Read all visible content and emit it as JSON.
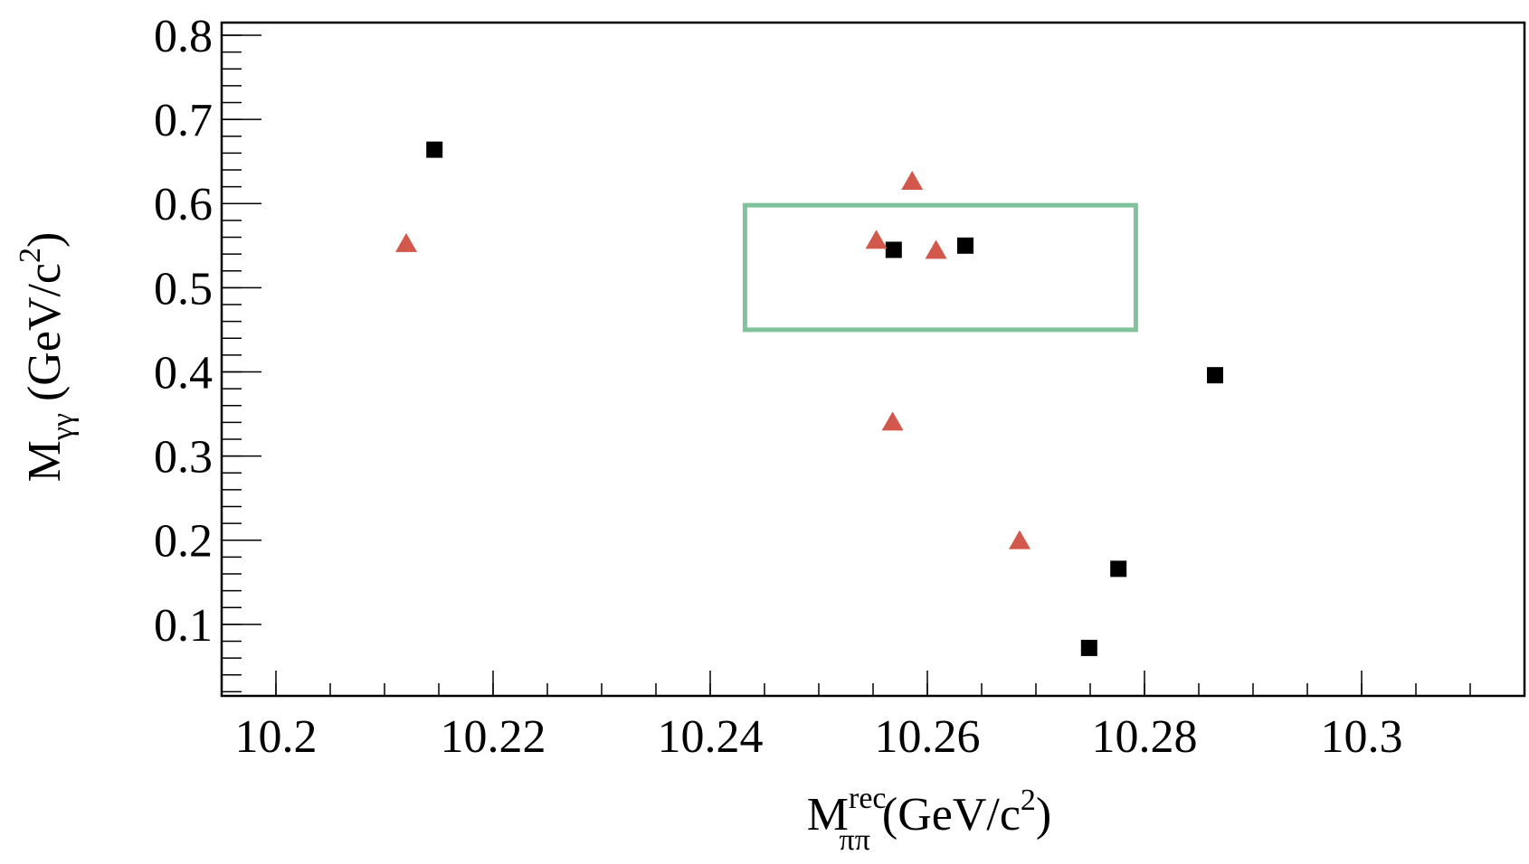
{
  "chart_data": {
    "type": "scatter",
    "xlabel": {
      "main": "M",
      "sup": "rec",
      "sub": "ππ",
      "unit_open": " (GeV/c",
      "unit_sup": "2",
      "unit_close": ")"
    },
    "ylabel": {
      "main": "M",
      "sub": "γγ",
      "unit_open": " (GeV/c",
      "unit_sup": "2",
      "unit_close": ")"
    },
    "xlim": [
      10.195,
      10.315
    ],
    "ylim": [
      0.015,
      0.815
    ],
    "x_ticks": [
      {
        "value": 10.2,
        "label": "10.2"
      },
      {
        "value": 10.22,
        "label": "10.22"
      },
      {
        "value": 10.24,
        "label": "10.24"
      },
      {
        "value": 10.26,
        "label": "10.26"
      },
      {
        "value": 10.28,
        "label": "10.28"
      },
      {
        "value": 10.3,
        "label": "10.3"
      }
    ],
    "y_ticks": [
      {
        "value": 0.1,
        "label": "0.1"
      },
      {
        "value": 0.2,
        "label": "0.2"
      },
      {
        "value": 0.3,
        "label": "0.3"
      },
      {
        "value": 0.4,
        "label": "0.4"
      },
      {
        "value": 0.5,
        "label": "0.5"
      },
      {
        "value": 0.6,
        "label": "0.6"
      },
      {
        "value": 0.7,
        "label": "0.7"
      },
      {
        "value": 0.8,
        "label": "0.8"
      }
    ],
    "grid": false,
    "legend": "none",
    "series": [
      {
        "marker": "square",
        "color": "#000000",
        "points": [
          {
            "x": 10.2146,
            "y": 0.664
          },
          {
            "x": 10.2569,
            "y": 0.545
          },
          {
            "x": 10.2635,
            "y": 0.55
          },
          {
            "x": 10.2865,
            "y": 0.396
          },
          {
            "x": 10.2776,
            "y": 0.166
          },
          {
            "x": 10.2749,
            "y": 0.072
          }
        ]
      },
      {
        "marker": "triangle",
        "color": "#d2584c",
        "points": [
          {
            "x": 10.212,
            "y": 0.552
          },
          {
            "x": 10.2553,
            "y": 0.556
          },
          {
            "x": 10.2586,
            "y": 0.626
          },
          {
            "x": 10.2608,
            "y": 0.544
          },
          {
            "x": 10.2568,
            "y": 0.34
          },
          {
            "x": 10.2685,
            "y": 0.199
          }
        ]
      }
    ],
    "signal_region": {
      "x": [
        10.2432,
        10.2792
      ],
      "y": [
        0.45,
        0.598
      ],
      "color": "#7fc29b"
    }
  }
}
